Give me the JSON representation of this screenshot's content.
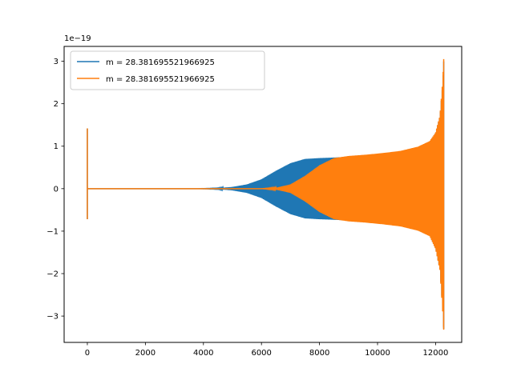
{
  "chart_data": {
    "type": "line",
    "title": "",
    "xlabel": "",
    "ylabel": "",
    "offset_text": "1e−19",
    "xlim": [
      -800,
      12900
    ],
    "ylim": [
      -3.62,
      3.35
    ],
    "xticks": [
      0,
      2000,
      4000,
      6000,
      8000,
      10000,
      12000
    ],
    "xtick_labels": [
      "0",
      "2000",
      "4000",
      "6000",
      "8000",
      "10000",
      "12000"
    ],
    "yticks": [
      -3,
      -2,
      -1,
      0,
      1,
      2,
      3
    ],
    "ytick_labels": [
      "−3",
      "−2",
      "−1",
      "0",
      "1",
      "2",
      "3"
    ],
    "grid": false,
    "legend": {
      "position": "upper-left"
    },
    "series": [
      {
        "name": "m = 28.381695521966925",
        "color": "#1f77b4",
        "envelope": {
          "x": [
            0,
            50,
            100,
            3800,
            4500,
            5000,
            5500,
            6000,
            6500,
            7000,
            7500,
            8000,
            8400,
            9000,
            9600,
            10200,
            10800,
            11400,
            11800,
            12000,
            12150,
            12200,
            12250,
            12280
          ],
          "upper": [
            1.42,
            0.0,
            0.0,
            0.0,
            0.01,
            0.04,
            0.1,
            0.22,
            0.42,
            0.6,
            0.7,
            0.72,
            0.73,
            0.75,
            0.78,
            0.82,
            0.88,
            0.98,
            1.1,
            1.3,
            1.7,
            2.1,
            2.5,
            3.0
          ],
          "lower": [
            -0.72,
            0.0,
            0.0,
            0.0,
            -0.01,
            -0.04,
            -0.1,
            -0.22,
            -0.42,
            -0.6,
            -0.7,
            -0.72,
            -0.73,
            -0.75,
            -0.78,
            -0.82,
            -0.88,
            -0.98,
            -1.1,
            -1.4,
            -1.9,
            -2.4,
            -2.9,
            -3.3
          ]
        }
      },
      {
        "name": "m = 28.381695521966925",
        "color": "#ff7f0e",
        "envelope": {
          "x": [
            0,
            50,
            100,
            4000,
            6000,
            6500,
            7000,
            7500,
            8000,
            8500,
            9000,
            9600,
            10200,
            10800,
            11400,
            11800,
            12000,
            12150,
            12200,
            12250,
            12280
          ],
          "upper": [
            1.42,
            0.0,
            0.0,
            0.0,
            0.0,
            0.02,
            0.1,
            0.3,
            0.55,
            0.72,
            0.77,
            0.8,
            0.84,
            0.89,
            0.99,
            1.12,
            1.32,
            1.72,
            2.15,
            2.6,
            3.05
          ],
          "lower": [
            -0.72,
            0.0,
            0.0,
            0.0,
            0.0,
            -0.02,
            -0.1,
            -0.3,
            -0.55,
            -0.72,
            -0.77,
            -0.8,
            -0.84,
            -0.89,
            -0.99,
            -1.12,
            -1.42,
            -1.92,
            -2.45,
            -2.95,
            -3.32
          ]
        }
      }
    ]
  }
}
